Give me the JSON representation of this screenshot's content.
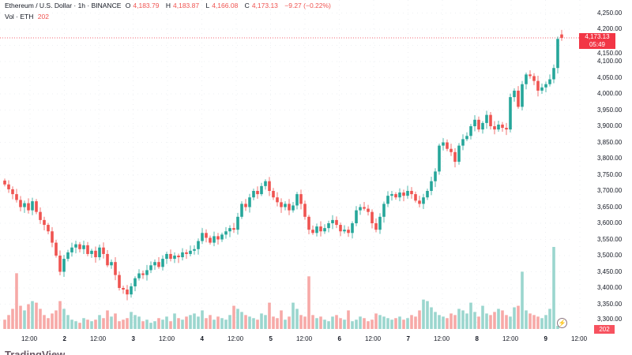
{
  "header": {
    "symbol": "Ethereum / U.S. Dollar · 1h · BINANCE",
    "o_label": "O",
    "o": "4,183.79",
    "h_label": "H",
    "h": "4,183.87",
    "l_label": "L",
    "l": "4,166.08",
    "c_label": "C",
    "c": "4,173.13",
    "change": "−9.27 (−0.22%)",
    "vol_label": "Vol · ETH",
    "vol": "202"
  },
  "price_tag": {
    "price": "4,173.13",
    "countdown": "05:49"
  },
  "volume_tag": "202",
  "logo": "TradingView",
  "colors": {
    "up": "#26a69a",
    "down": "#ef5350",
    "up_volume": "#9bd6ce",
    "down_volume": "#f7a9a7",
    "price_tag": "#f23645"
  },
  "chart_data": {
    "type": "candlestick",
    "symbol": "ETHUSD",
    "interval": "1h",
    "x_ticks": [
      "12:00",
      "2",
      "12:00",
      "3",
      "12:00",
      "4",
      "12:00",
      "5",
      "12:00",
      "6",
      "12:00",
      "7",
      "12:00",
      "8",
      "12:00",
      "9",
      "12:00"
    ],
    "y_ticks": [
      "4,250.00",
      "4,200.00",
      "4,150.00",
      "4,100.00",
      "4,050.00",
      "4,000.00",
      "3,950.00",
      "3,900.00",
      "3,850.00",
      "3,800.00",
      "3,750.00",
      "3,700.00",
      "3,650.00",
      "3,600.00",
      "3,550.00",
      "3,500.00",
      "3,450.00",
      "3,400.00",
      "3,350.00",
      "3,300.00"
    ],
    "ylim": [
      3280,
      4270
    ],
    "last_price": 4173.13,
    "closes": [
      3720,
      3705,
      3690,
      3672,
      3650,
      3662,
      3640,
      3668,
      3635,
      3610,
      3595,
      3575,
      3540,
      3500,
      3450,
      3490,
      3510,
      3525,
      3535,
      3520,
      3532,
      3505,
      3515,
      3495,
      3525,
      3505,
      3470,
      3480,
      3440,
      3400,
      3395,
      3380,
      3405,
      3430,
      3445,
      3440,
      3455,
      3470,
      3480,
      3465,
      3490,
      3505,
      3490,
      3500,
      3495,
      3510,
      3505,
      3515,
      3520,
      3545,
      3570,
      3555,
      3540,
      3560,
      3550,
      3565,
      3575,
      3585,
      3580,
      3620,
      3660,
      3650,
      3680,
      3700,
      3690,
      3715,
      3730,
      3700,
      3680,
      3665,
      3650,
      3660,
      3640,
      3655,
      3690,
      3660,
      3620,
      3580,
      3570,
      3590,
      3575,
      3585,
      3600,
      3610,
      3595,
      3575,
      3580,
      3570,
      3600,
      3640,
      3650,
      3645,
      3635,
      3600,
      3580,
      3620,
      3660,
      3685,
      3690,
      3680,
      3695,
      3685,
      3700,
      3690,
      3670,
      3660,
      3680,
      3700,
      3730,
      3760,
      3840,
      3850,
      3830,
      3820,
      3790,
      3840,
      3860,
      3870,
      3900,
      3920,
      3890,
      3910,
      3935,
      3900,
      3890,
      3905,
      3895,
      3890,
      3990,
      4010,
      3960,
      4030,
      4060,
      4055,
      4040,
      4010,
      4020,
      4030,
      4045,
      4080,
      4170,
      4173.13
    ],
    "volumes": [
      600,
      900,
      1300,
      3600,
      1500,
      1200,
      1600,
      1800,
      1700,
      1300,
      900,
      700,
      1000,
      1200,
      1800,
      1300,
      900,
      600,
      500,
      400,
      700,
      600,
      500,
      600,
      900,
      700,
      1200,
      800,
      1000,
      500,
      600,
      700,
      1100,
      900,
      800,
      500,
      600,
      400,
      500,
      700,
      600,
      800,
      500,
      1000,
      700,
      600,
      800,
      900,
      1000,
      800,
      1200,
      700,
      900,
      600,
      800,
      700,
      600,
      900,
      1500,
      1300,
      1100,
      900,
      800,
      700,
      600,
      1000,
      900,
      1700,
      800,
      700,
      1200,
      600,
      800,
      1700,
      1300,
      900,
      800,
      3400,
      900,
      700,
      800,
      600,
      500,
      800,
      900,
      700,
      600,
      1200,
      500,
      600,
      800,
      700,
      500,
      600,
      1000,
      900,
      800,
      700,
      600,
      700,
      800,
      600,
      700,
      900,
      800,
      1200,
      1900,
      1800,
      1400,
      1100,
      900,
      800,
      700,
      1000,
      900,
      1300,
      1200,
      1000,
      1700,
      1100,
      800,
      1500,
      1000,
      900,
      1100,
      1300,
      1200,
      900,
      800,
      1400,
      1500,
      3700,
      1200,
      1000,
      900,
      800,
      700,
      900,
      1300,
      5300,
      202
    ]
  }
}
